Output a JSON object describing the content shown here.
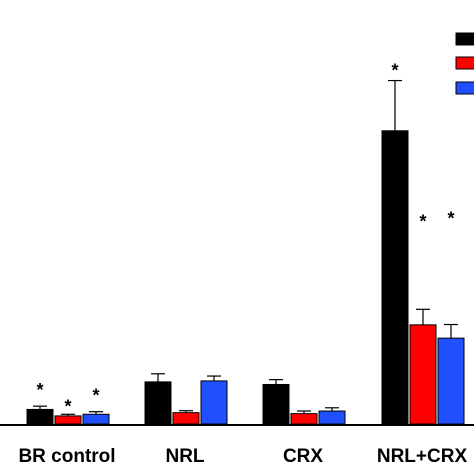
{
  "chart_data": {
    "type": "bar",
    "title": "",
    "xlabel": "",
    "ylabel": "",
    "categories": [
      "BR control",
      "NRL",
      "CRX",
      "NRL+CRX"
    ],
    "series": [
      {
        "color": "#000000",
        "values": [
          0.45,
          1.3,
          1.22,
          9.05
        ],
        "errors": [
          0.1,
          0.25,
          0.15,
          1.55
        ]
      },
      {
        "color": "#ff0000",
        "values": [
          0.25,
          0.35,
          0.32,
          3.06
        ],
        "errors": [
          0.05,
          0.06,
          0.08,
          0.48
        ]
      },
      {
        "color": "#1f4fff",
        "values": [
          0.3,
          1.33,
          0.4,
          2.65
        ],
        "errors": [
          0.08,
          0.15,
          0.1,
          0.42
        ]
      }
    ],
    "annotations": [
      {
        "category": 0,
        "series": 0,
        "text": "*"
      },
      {
        "category": 0,
        "series": 1,
        "text": "*"
      },
      {
        "category": 0,
        "series": 2,
        "text": "*"
      },
      {
        "category": 3,
        "series": 0,
        "text": "*"
      },
      {
        "category": 3,
        "series": 1,
        "text": "*"
      },
      {
        "category": 3,
        "series": 2,
        "text": "*"
      }
    ],
    "ylim": [
      0,
      11
    ],
    "legend": "top-right"
  }
}
